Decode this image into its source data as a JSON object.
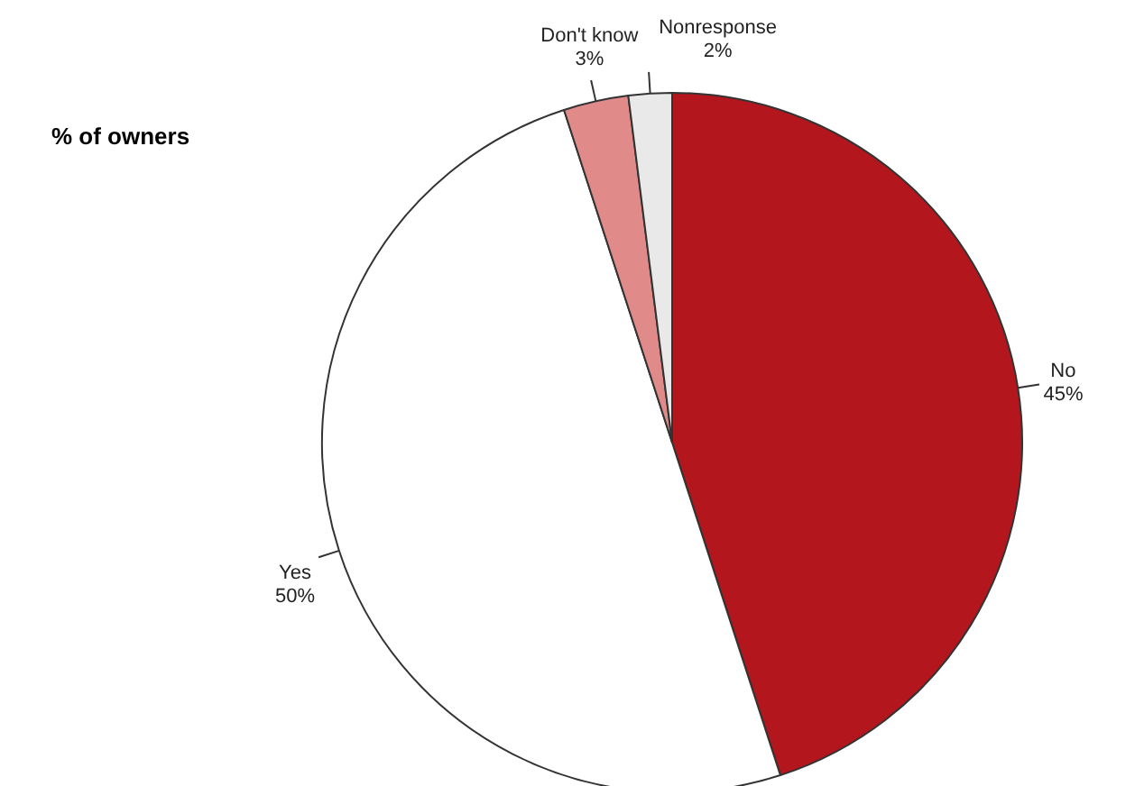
{
  "chart_data": {
    "type": "pie",
    "title": "% of owners",
    "categories": [
      "No",
      "Yes",
      "Don't know",
      "Nonresponse"
    ],
    "values": [
      45,
      50,
      3,
      2
    ],
    "value_labels": [
      "45%",
      "50%",
      "3%",
      "2%"
    ],
    "colors": [
      "#b3171d",
      "#ffffff",
      "#e08a8a",
      "#e9e9e9"
    ]
  }
}
